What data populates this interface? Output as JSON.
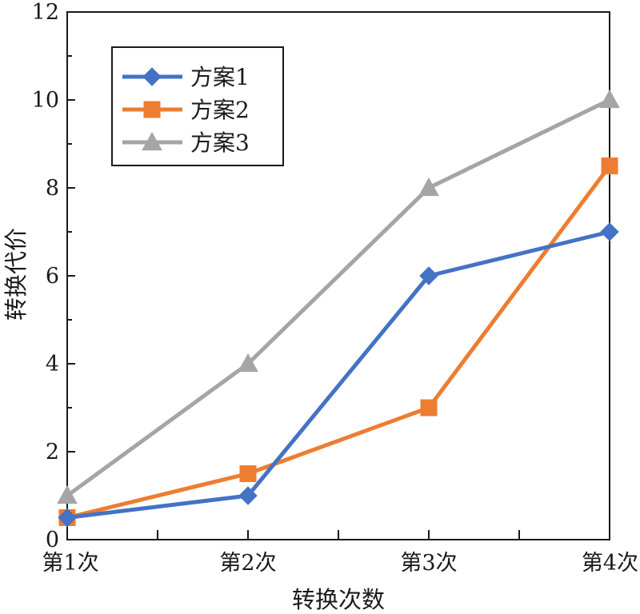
{
  "chart_data": {
    "type": "line",
    "categories": [
      "第1次",
      "第2次",
      "第3次",
      "第4次"
    ],
    "xlabel": "转换次数",
    "ylabel": "转换代价",
    "ylim": [
      0,
      12
    ],
    "yticks": [
      "0",
      "2",
      "4",
      "6",
      "8",
      "10",
      "12"
    ],
    "grid": false,
    "legend_position": "top-left",
    "series": [
      {
        "name": "方案1",
        "marker": "diamond",
        "color": "#4472C4",
        "values": [
          0.5,
          1.0,
          6.0,
          7.0
        ]
      },
      {
        "name": "方案2",
        "marker": "square",
        "color": "#ED7D31",
        "values": [
          0.5,
          1.5,
          3.0,
          8.5
        ]
      },
      {
        "name": "方案3",
        "marker": "triangle",
        "color": "#A5A5A5",
        "values": [
          1.0,
          4.0,
          8.0,
          10.0
        ]
      }
    ]
  }
}
